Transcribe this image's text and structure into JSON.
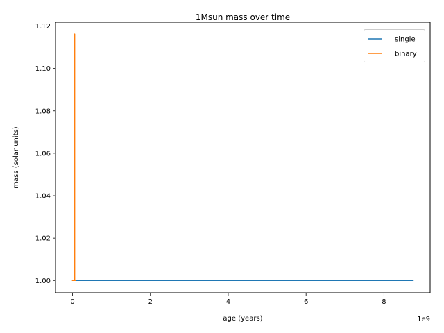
{
  "chart_data": {
    "type": "line",
    "title": "1Msun mass over time",
    "xlabel": "age (years)",
    "ylabel": "mass (solar units)",
    "x_offset_label": "1e9",
    "xlim": [
      -0.4375,
      9.1875
    ],
    "ylim": [
      0.9942,
      1.1218
    ],
    "x_ticks": [
      0,
      2,
      4,
      6,
      8
    ],
    "x_tick_labels": [
      "0",
      "2",
      "4",
      "6",
      "8"
    ],
    "y_ticks": [
      1.0,
      1.02,
      1.04,
      1.06,
      1.08,
      1.1,
      1.12
    ],
    "y_tick_labels": [
      "1.00",
      "1.02",
      "1.04",
      "1.06",
      "1.08",
      "1.10",
      "1.12"
    ],
    "legend_position": "top-right",
    "grid": false,
    "series": [
      {
        "name": "single",
        "color": "#1f77b4",
        "points": [
          [
            0.0,
            1.0
          ],
          [
            8.75,
            1.0
          ]
        ]
      },
      {
        "name": "binary",
        "color": "#ff7f0e",
        "points": [
          [
            0.0,
            1.0
          ],
          [
            0.03,
            1.0
          ],
          [
            0.05,
            1.0
          ],
          [
            0.05,
            1.1162
          ],
          [
            0.055,
            1.1162
          ],
          [
            0.055,
            1.0
          ],
          [
            0.07,
            1.0
          ]
        ]
      }
    ]
  }
}
